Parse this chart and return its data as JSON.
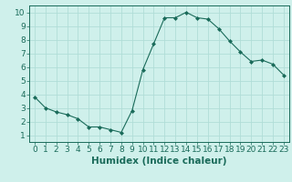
{
  "x": [
    0,
    1,
    2,
    3,
    4,
    5,
    6,
    7,
    8,
    9,
    10,
    11,
    12,
    13,
    14,
    15,
    16,
    17,
    18,
    19,
    20,
    21,
    22,
    23
  ],
  "y": [
    3.8,
    3.0,
    2.7,
    2.5,
    2.2,
    1.6,
    1.6,
    1.4,
    1.2,
    2.8,
    5.8,
    7.7,
    9.6,
    9.6,
    10.0,
    9.6,
    9.5,
    8.8,
    7.9,
    7.1,
    6.4,
    6.5,
    6.2,
    5.4
  ],
  "line_color": "#1a6b5a",
  "marker": "D",
  "marker_size": 2.0,
  "bg_color": "#cff0eb",
  "grid_color": "#b0ddd7",
  "xlabel": "Humidex (Indice chaleur)",
  "xlim": [
    -0.5,
    23.5
  ],
  "ylim": [
    0.5,
    10.5
  ],
  "xticks": [
    0,
    1,
    2,
    3,
    4,
    5,
    6,
    7,
    8,
    9,
    10,
    11,
    12,
    13,
    14,
    15,
    16,
    17,
    18,
    19,
    20,
    21,
    22,
    23
  ],
  "yticks": [
    1,
    2,
    3,
    4,
    5,
    6,
    7,
    8,
    9,
    10
  ],
  "tick_color": "#1a6b5a",
  "label_color": "#1a6b5a",
  "font_size_xlabel": 7.5,
  "font_size_ticks": 6.5
}
